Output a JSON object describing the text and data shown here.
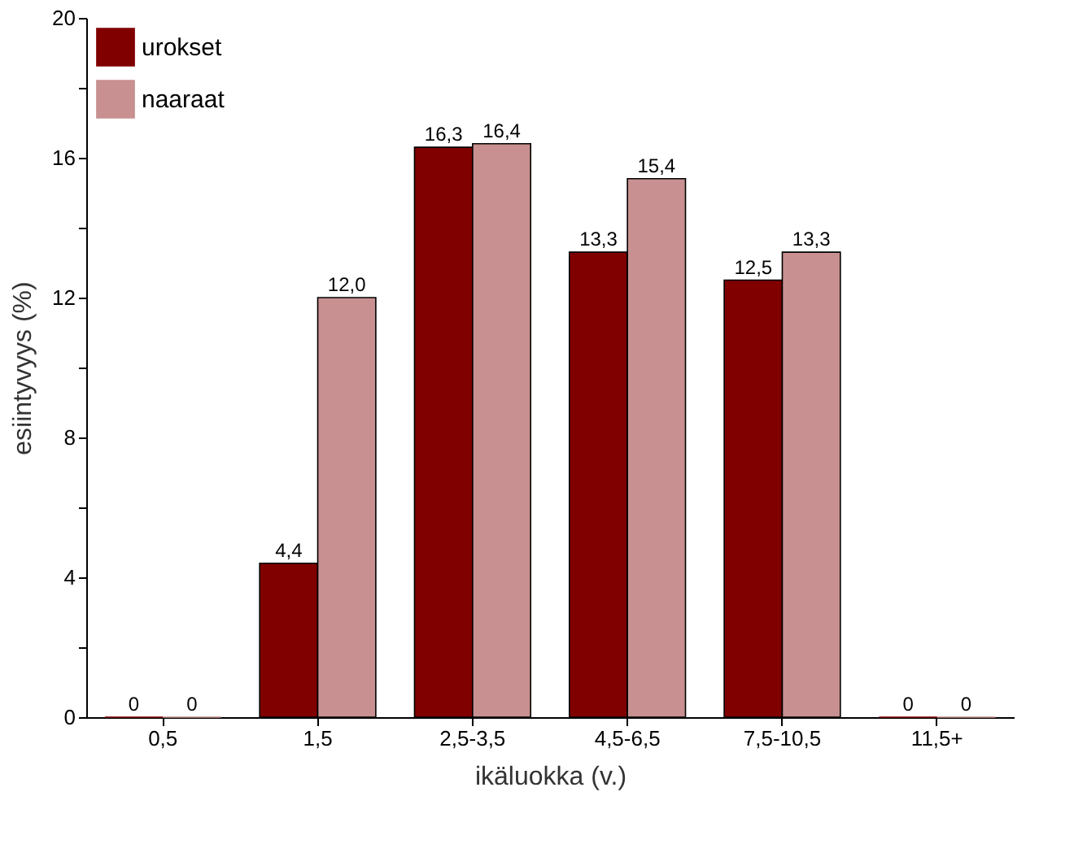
{
  "chart_data": {
    "type": "bar",
    "xlabel": "ikäluokka (v.)",
    "ylabel": "esiintyvyys (%)",
    "categories": [
      "0,5",
      "1,5",
      "2,5-3,5",
      "4,5-6,5",
      "7,5-10,5",
      "11,5+"
    ],
    "series": [
      {
        "name": "urokset",
        "color": "#800000",
        "values": [
          0,
          4.4,
          16.3,
          13.3,
          12.5,
          0
        ],
        "value_labels": [
          "0",
          "4,4",
          "16,3",
          "13,3",
          "12,5",
          "0"
        ]
      },
      {
        "name": "naaraat",
        "color": "#c89090",
        "values": [
          0,
          12.0,
          16.4,
          15.4,
          13.3,
          0
        ],
        "value_labels": [
          "0",
          "12,0",
          "16,4",
          "15,4",
          "13,3",
          "0"
        ]
      }
    ],
    "ylim": [
      0,
      20
    ],
    "yticks": [
      0,
      {
        "value": 2,
        "label": null
      },
      4,
      {
        "value": 6,
        "label": null
      },
      8,
      {
        "value": 10,
        "label": null
      },
      12,
      {
        "value": 14,
        "label": null
      },
      16,
      {
        "value": 18,
        "label": null
      },
      20
    ],
    "grid": false,
    "legend": "top left"
  }
}
